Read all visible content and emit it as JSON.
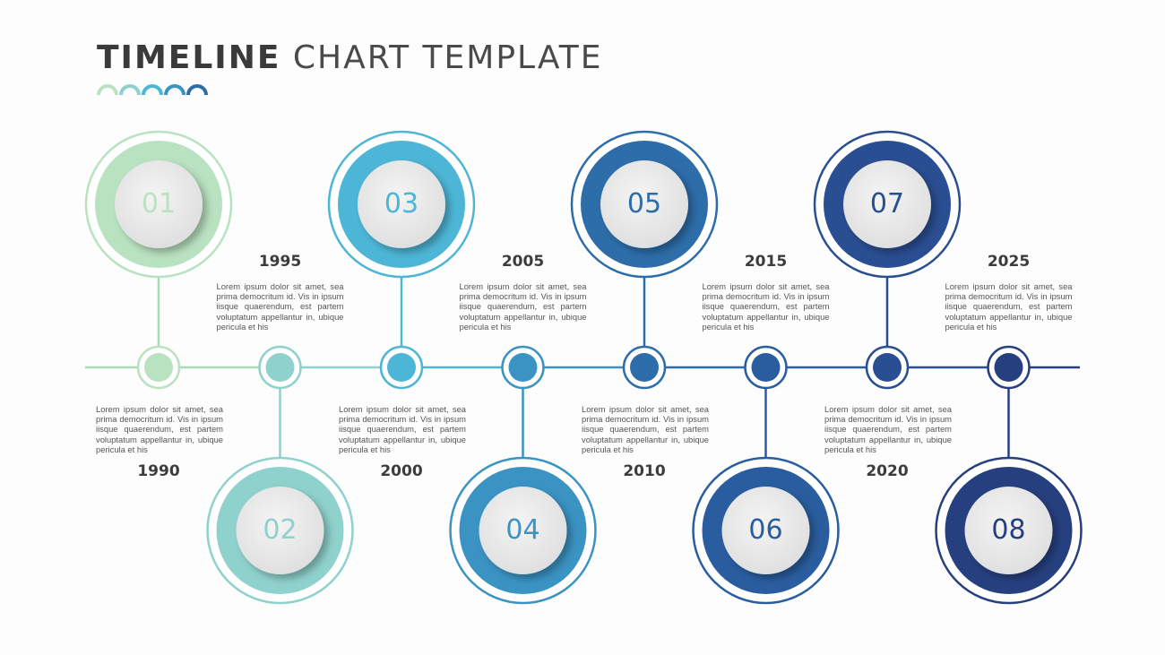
{
  "title": {
    "bold": "TIMELINE",
    "light": "CHART TEMPLATE"
  },
  "milestones": [
    {
      "num": "01",
      "year": "1990",
      "desc": "Lorem ipsum dolor sit amet, sea prima democritum id. Vis in ipsum iisque quaerendum, est partem voluptatum appellantur in, ubique pericula et his",
      "color": "#b9e2c1",
      "line": "#a8dbb6"
    },
    {
      "num": "02",
      "year": "1995",
      "desc": "Lorem ipsum dolor sit amet, sea prima democritum id. Vis in ipsum iisque quaerendum, est partem voluptatum appellantur in, ubique pericula et his",
      "color": "#8fd1cc",
      "line": "#8fd1cc"
    },
    {
      "num": "03",
      "year": "2000",
      "desc": "Lorem ipsum dolor sit amet, sea prima democritum id. Vis in ipsum iisque quaerendum, est partem voluptatum appellantur in, ubique pericula et his",
      "color": "#4db6d6",
      "line": "#4db6d6"
    },
    {
      "num": "04",
      "year": "2005",
      "desc": "Lorem ipsum dolor sit amet, sea prima democritum id. Vis in ipsum iisque quaerendum, est partem voluptatum appellantur in, ubique pericula et his",
      "color": "#3a93c3",
      "line": "#3a93c3"
    },
    {
      "num": "05",
      "year": "2010",
      "desc": "Lorem ipsum dolor sit amet, sea prima democritum id. Vis in ipsum iisque quaerendum, est partem voluptatum appellantur in, ubique pericula et his",
      "color": "#2d6da9",
      "line": "#2d6da9"
    },
    {
      "num": "06",
      "year": "2015",
      "desc": "Lorem ipsum dolor sit amet, sea prima democritum id. Vis in ipsum iisque quaerendum, est partem voluptatum appellantur in, ubique pericula et his",
      "color": "#2a5d9f",
      "line": "#2a5d9f"
    },
    {
      "num": "07",
      "year": "2020",
      "desc": "Lorem ipsum dolor sit amet, sea prima democritum id. Vis in ipsum iisque quaerendum, est partem voluptatum appellantur in, ubique pericula et his",
      "color": "#2a4e92",
      "line": "#2a4e92"
    },
    {
      "num": "08",
      "year": "2025",
      "desc": "Lorem ipsum dolor sit amet, sea prima democritum id. Vis in ipsum iisque quaerendum, est partem voluptatum appellantur in, ubique pericula et his",
      "color": "#26407f",
      "line": "#26407f"
    }
  ]
}
